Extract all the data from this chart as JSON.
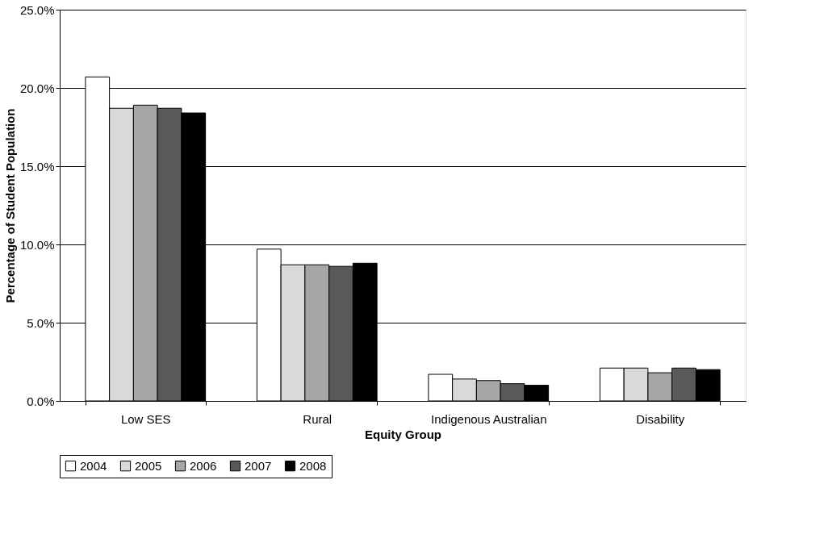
{
  "chart_data": {
    "type": "bar",
    "xlabel": "Equity Group",
    "ylabel": "Percentage of Student Population",
    "categories": [
      "Low SES",
      "Rural",
      "Indigenous Australian",
      "Disability"
    ],
    "series": [
      {
        "name": "2004",
        "color": "#ffffff",
        "values": [
          20.7,
          9.7,
          1.7,
          2.1
        ]
      },
      {
        "name": "2005",
        "color": "#d9d9d9",
        "values": [
          18.7,
          8.7,
          1.4,
          2.1
        ]
      },
      {
        "name": "2006",
        "color": "#a6a6a6",
        "values": [
          18.9,
          8.7,
          1.3,
          1.8
        ]
      },
      {
        "name": "2007",
        "color": "#595959",
        "values": [
          18.7,
          8.6,
          1.1,
          2.1
        ]
      },
      {
        "name": "2008",
        "color": "#000000",
        "values": [
          18.4,
          8.8,
          1.0,
          2.0
        ]
      }
    ],
    "ylim": [
      0,
      25
    ],
    "yticks": [
      {
        "value": 0,
        "label": "0.0%"
      },
      {
        "value": 5,
        "label": "5.0%"
      },
      {
        "value": 10,
        "label": "10.0%"
      },
      {
        "value": 15,
        "label": "15.0%"
      },
      {
        "value": 20,
        "label": "20.0%"
      },
      {
        "value": 25,
        "label": "25.0%"
      }
    ],
    "grid": "y",
    "legend": "bottom"
  }
}
